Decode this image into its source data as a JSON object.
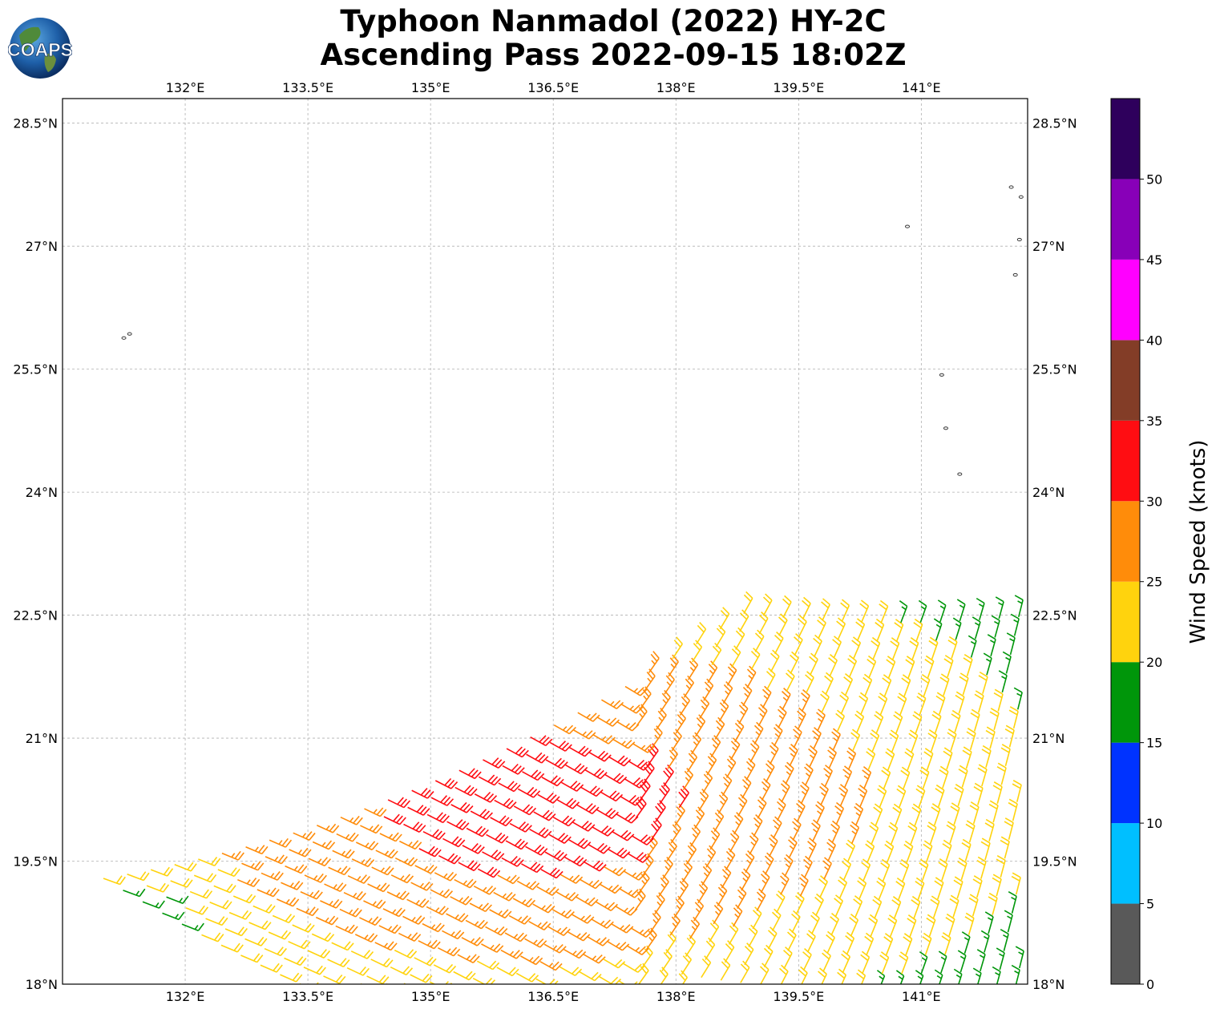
{
  "title": {
    "line1": "Typhoon Nanmadol (2022) HY-2C",
    "line2": "Ascending Pass 2022-09-15 18:02Z"
  },
  "logo": {
    "text": "COAPS",
    "icon": "globe-logo"
  },
  "map": {
    "lon_range": [
      130.5,
      142.3
    ],
    "lat_range": [
      18.0,
      28.8
    ],
    "lon_ticks": [
      {
        "value": 132.0,
        "label": "132°E"
      },
      {
        "value": 133.5,
        "label": "133.5°E"
      },
      {
        "value": 135.0,
        "label": "135°E"
      },
      {
        "value": 136.5,
        "label": "136.5°E"
      },
      {
        "value": 138.0,
        "label": "138°E"
      },
      {
        "value": 139.5,
        "label": "139.5°E"
      },
      {
        "value": 141.0,
        "label": "141°E"
      }
    ],
    "lat_ticks": [
      {
        "value": 28.5,
        "label": "28.5°N"
      },
      {
        "value": 27.0,
        "label": "27°N"
      },
      {
        "value": 25.5,
        "label": "25.5°N"
      },
      {
        "value": 24.0,
        "label": "24°N"
      },
      {
        "value": 22.5,
        "label": "22.5°N"
      },
      {
        "value": 21.0,
        "label": "21°N"
      },
      {
        "value": 19.5,
        "label": "19.5°N"
      },
      {
        "value": 18.0,
        "label": "18°N"
      }
    ],
    "gridlines": true,
    "islands": [
      {
        "lon": 131.25,
        "lat": 25.88
      },
      {
        "lon": 131.32,
        "lat": 25.93
      },
      {
        "lon": 140.83,
        "lat": 27.24
      },
      {
        "lon": 141.25,
        "lat": 25.43
      },
      {
        "lon": 141.3,
        "lat": 24.78
      },
      {
        "lon": 141.47,
        "lat": 24.22
      },
      {
        "lon": 142.15,
        "lat": 26.65
      },
      {
        "lon": 142.2,
        "lat": 27.08
      },
      {
        "lon": 142.22,
        "lat": 27.6
      },
      {
        "lon": 142.1,
        "lat": 27.72
      }
    ],
    "swath": {
      "description_free": true,
      "num_lines": 28,
      "samples_per_line": 40,
      "line_spacing_lat": 0.165,
      "sample_spacing_deg": 0.27
    }
  },
  "colorbar": {
    "label": "Wind Speed (knots)",
    "bins": [
      {
        "min": 0,
        "max": 5,
        "color": "#595959"
      },
      {
        "min": 5,
        "max": 10,
        "color": "#00bfff"
      },
      {
        "min": 10,
        "max": 15,
        "color": "#0033ff"
      },
      {
        "min": 15,
        "max": 20,
        "color": "#00960a"
      },
      {
        "min": 20,
        "max": 25,
        "color": "#ffd30d"
      },
      {
        "min": 25,
        "max": 30,
        "color": "#ff8c0a"
      },
      {
        "min": 30,
        "max": 35,
        "color": "#ff0d12"
      },
      {
        "min": 35,
        "max": 40,
        "color": "#833d27"
      },
      {
        "min": 40,
        "max": 45,
        "color": "#ff00ff"
      },
      {
        "min": 45,
        "max": 50,
        "color": "#8800b8"
      },
      {
        "min": 50,
        "max": 55,
        "color": "#2e005c"
      }
    ],
    "tick_labels": [
      "0",
      "5",
      "10",
      "15",
      "20",
      "25",
      "30",
      "35",
      "40",
      "45",
      "50"
    ]
  }
}
